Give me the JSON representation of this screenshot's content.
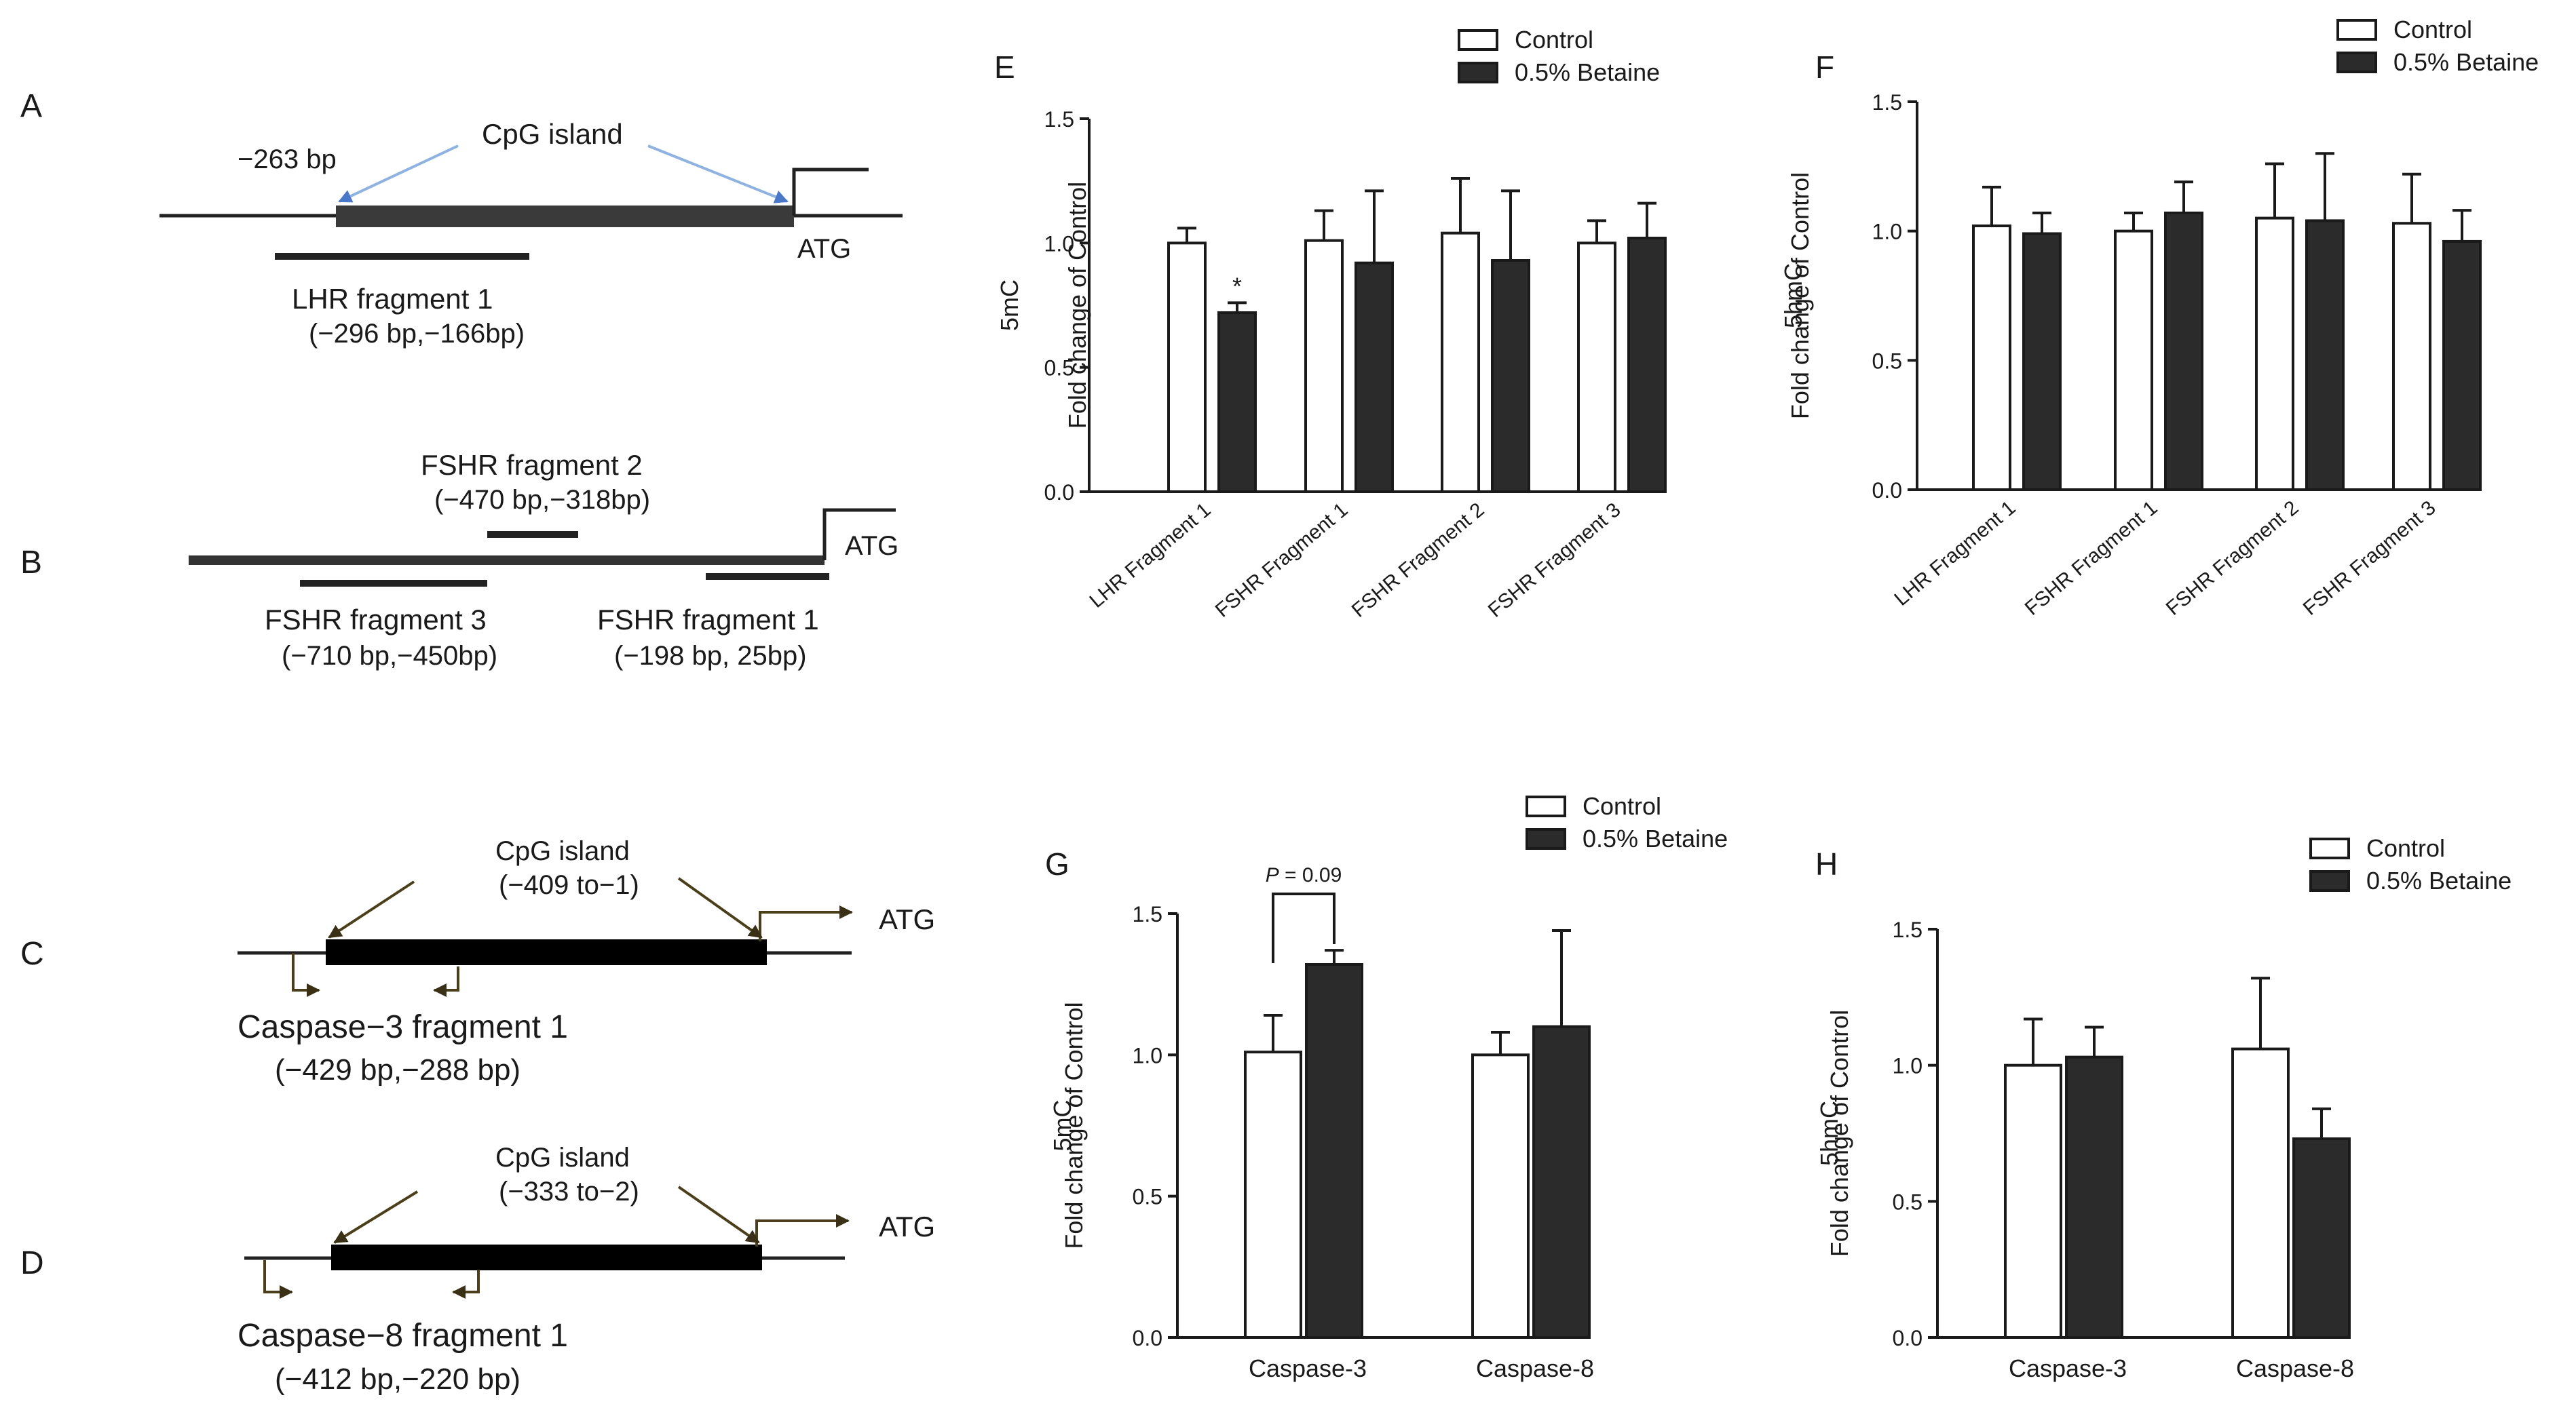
{
  "diagrams": {
    "A": {
      "label": "A",
      "cpg_label": "CpG island",
      "start_label": "−263 bp",
      "atg": "ATG",
      "fragment_name": "LHR fragment 1",
      "fragment_range": "(−296 bp,−166bp)"
    },
    "B": {
      "label": "B",
      "atg": "ATG",
      "frag2_name": "FSHR fragment 2",
      "frag2_range": "(−470 bp,−318bp)",
      "frag3_name": "FSHR fragment 3",
      "frag3_range": "(−710 bp,−450bp)",
      "frag1_name": "FSHR fragment 1",
      "frag1_range": "(−198 bp, 25bp)"
    },
    "C": {
      "label": "C",
      "cpg_label": "CpG island",
      "cpg_range": "(−409 to−1)",
      "atg": "ATG",
      "fragment_name": "Caspase−3  fragment 1",
      "fragment_range": "(−429 bp,−288 bp)"
    },
    "D": {
      "label": "D",
      "cpg_label": "CpG island",
      "cpg_range": "(−333 to−2)",
      "atg": "ATG",
      "fragment_name": "Caspase−8  fragment 1",
      "fragment_range": "(−412 bp,−220 bp)"
    }
  },
  "colors": {
    "control": "#ffffff",
    "betaine": "#2b2b2b",
    "cpg_arrow_blue": "#8fb3e0"
  },
  "chart_data": [
    {
      "id": "E",
      "type": "bar",
      "panel_label": "E",
      "categories": [
        "LHR Fragment 1",
        "FSHR Fragment 1",
        "FSHR Fragment 2",
        "FSHR Fragment 3"
      ],
      "series": [
        {
          "name": "Control",
          "values": [
            1.0,
            1.01,
            1.04,
            1.0
          ],
          "errors": [
            0.06,
            0.12,
            0.22,
            0.09
          ]
        },
        {
          "name": "0.5% Betaine",
          "values": [
            0.72,
            0.92,
            0.93,
            1.02
          ],
          "errors": [
            0.04,
            0.29,
            0.28,
            0.14
          ]
        }
      ],
      "ylabel_line1": "5mC",
      "ylabel_line2": "Fold change of Control",
      "ylim": [
        0,
        1.5
      ],
      "yticks": [
        "0.0",
        "0.5",
        "1.0",
        "1.5"
      ],
      "significance": "*",
      "legend": [
        "Control",
        "0.5% Betaine"
      ]
    },
    {
      "id": "F",
      "type": "bar",
      "panel_label": "F",
      "categories": [
        "LHR Fragment 1",
        "FSHR Fragment 1",
        "FSHR Fragment 2",
        "FSHR Fragment 3"
      ],
      "series": [
        {
          "name": "Control",
          "values": [
            1.02,
            1.0,
            1.05,
            1.03
          ],
          "errors": [
            0.15,
            0.07,
            0.21,
            0.19
          ]
        },
        {
          "name": "0.5% Betaine",
          "values": [
            0.99,
            1.07,
            1.04,
            0.96
          ],
          "errors": [
            0.08,
            0.12,
            0.26,
            0.12
          ]
        }
      ],
      "ylabel_line1": "5hmC",
      "ylabel_line2": "Fold change of Control",
      "ylim": [
        0,
        1.5
      ],
      "yticks": [
        "0.0",
        "0.5",
        "1.0",
        "1.5"
      ],
      "legend": [
        "Control",
        "0.5% Betaine"
      ]
    },
    {
      "id": "G",
      "type": "bar",
      "panel_label": "G",
      "categories": [
        "Caspase-3",
        "Caspase-8"
      ],
      "series": [
        {
          "name": "Control",
          "values": [
            1.01,
            1.0
          ],
          "errors": [
            0.13,
            0.08
          ]
        },
        {
          "name": "0.5% Betaine",
          "values": [
            1.32,
            1.1
          ],
          "errors": [
            0.05,
            0.34
          ]
        }
      ],
      "ylabel_line1": "5mC",
      "ylabel_line2": "Fold change of Control",
      "ylim": [
        0,
        1.5
      ],
      "yticks": [
        "0.0",
        "0.5",
        "1.0",
        "1.5"
      ],
      "pvalue_italic": "P",
      "pvalue_rest": " = 0.09",
      "legend": [
        "Control",
        "0.5% Betaine"
      ]
    },
    {
      "id": "H",
      "type": "bar",
      "panel_label": "H",
      "categories": [
        "Caspase-3",
        "Caspase-8"
      ],
      "series": [
        {
          "name": "Control",
          "values": [
            1.0,
            1.06
          ],
          "errors": [
            0.17,
            0.26
          ]
        },
        {
          "name": "0.5% Betaine",
          "values": [
            1.03,
            0.73
          ],
          "errors": [
            0.11,
            0.11
          ]
        }
      ],
      "ylabel_line1": "5hmC",
      "ylabel_line2": "Fold change of Control",
      "ylim": [
        0,
        1.5
      ],
      "yticks": [
        "0.0",
        "0.5",
        "1.0",
        "1.5"
      ],
      "legend": [
        "Control",
        "0.5% Betaine"
      ]
    }
  ]
}
